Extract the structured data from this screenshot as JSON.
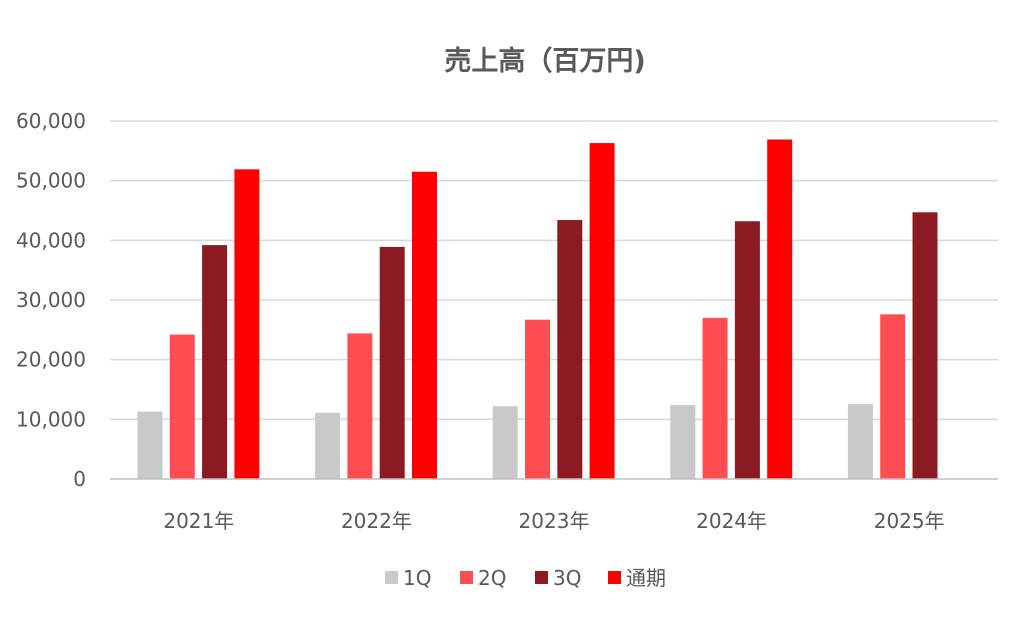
{
  "chart_data": {
    "type": "bar",
    "title": "売上高（百万円)",
    "xlabel": "",
    "ylabel": "",
    "categories": [
      "2021年",
      "2022年",
      "2023年",
      "2024年",
      "2025年"
    ],
    "series": [
      {
        "name": "1Q",
        "color": "#c9c9c9",
        "values": [
          11300,
          11100,
          12200,
          12400,
          12600
        ]
      },
      {
        "name": "2Q",
        "color": "#ff4d52",
        "values": [
          24200,
          24400,
          26700,
          27000,
          27600
        ]
      },
      {
        "name": "3Q",
        "color": "#8b1a22",
        "values": [
          39200,
          38900,
          43400,
          43200,
          44700
        ]
      },
      {
        "name": "通期",
        "color": "#ff0000",
        "values": [
          51900,
          51500,
          56300,
          56900,
          null
        ]
      }
    ],
    "ylim": [
      0,
      60000
    ],
    "y_ticks": [
      "0",
      "10,000",
      "20,000",
      "30,000",
      "40,000",
      "50,000",
      "60,000"
    ],
    "y_tick_values": [
      0,
      10000,
      20000,
      30000,
      40000,
      50000,
      60000
    ],
    "grid": true,
    "legend_position": "bottom"
  }
}
